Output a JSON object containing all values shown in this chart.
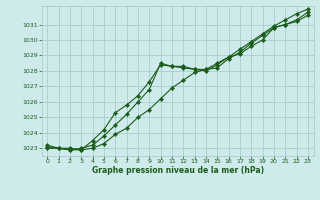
{
  "title": "Graphe pression niveau de la mer (hPa)",
  "bg_color": "#ceeaea",
  "grid_color": "#9fc8c8",
  "line_color": "#1a5c1a",
  "xlim": [
    -0.5,
    23.5
  ],
  "ylim": [
    1022.5,
    1032.2
  ],
  "yticks": [
    1023,
    1024,
    1025,
    1026,
    1027,
    1028,
    1029,
    1030,
    1031
  ],
  "xticks": [
    0,
    1,
    2,
    3,
    4,
    5,
    6,
    7,
    8,
    9,
    10,
    11,
    12,
    13,
    14,
    15,
    16,
    17,
    18,
    19,
    20,
    21,
    22,
    23
  ],
  "series1": {
    "x": [
      0,
      1,
      2,
      3,
      4,
      5,
      6,
      7,
      8,
      9,
      10,
      11,
      12,
      13,
      14,
      15,
      16,
      17,
      18,
      19,
      20,
      21,
      22,
      23
    ],
    "y": [
      1023.1,
      1023.0,
      1022.9,
      1023.0,
      1023.2,
      1023.8,
      1024.5,
      1025.2,
      1026.0,
      1026.8,
      1028.5,
      1028.3,
      1028.3,
      1028.1,
      1028.1,
      1028.2,
      1028.8,
      1029.2,
      1029.8,
      1030.3,
      1030.8,
      1031.0,
      1031.2,
      1031.6
    ]
  },
  "series2": {
    "x": [
      0,
      1,
      2,
      3,
      4,
      5,
      6,
      7,
      8,
      9,
      10,
      11,
      12,
      13,
      14,
      15,
      16,
      17,
      18,
      19,
      20,
      21,
      22,
      23
    ],
    "y": [
      1023.0,
      1023.0,
      1022.9,
      1022.9,
      1023.5,
      1024.2,
      1025.3,
      1025.8,
      1026.4,
      1027.3,
      1028.4,
      1028.3,
      1028.2,
      1028.1,
      1028.0,
      1028.4,
      1028.9,
      1029.1,
      1029.6,
      1030.0,
      1030.8,
      1031.0,
      1031.3,
      1031.8
    ]
  },
  "series3": {
    "x": [
      0,
      1,
      2,
      3,
      4,
      5,
      6,
      7,
      8,
      9,
      10,
      11,
      12,
      13,
      14,
      15,
      16,
      17,
      18,
      19,
      20,
      21,
      22,
      23
    ],
    "y": [
      1023.2,
      1023.0,
      1023.0,
      1022.9,
      1023.0,
      1023.3,
      1023.9,
      1024.3,
      1025.0,
      1025.5,
      1026.2,
      1026.9,
      1027.4,
      1027.9,
      1028.1,
      1028.5,
      1028.9,
      1029.4,
      1029.9,
      1030.4,
      1030.9,
      1031.3,
      1031.7,
      1032.0
    ]
  }
}
